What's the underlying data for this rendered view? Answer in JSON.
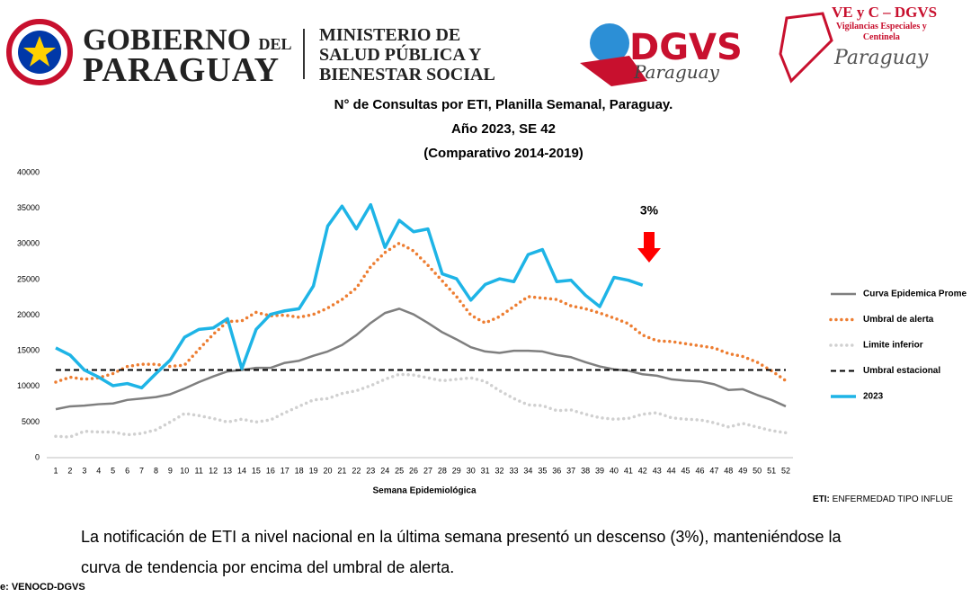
{
  "header": {
    "gov_line1": "GOBIERNO",
    "gov_del": "DEL",
    "gov_line2": "PARAGUAY",
    "ministry": [
      "MINISTERIO DE",
      "SALUD PÚBLICA Y",
      "BIENESTAR SOCIAL"
    ],
    "dgvs": "DGVS",
    "dgvs_sub": "Paraguay",
    "vec_title": "VE y C – DGVS",
    "vec_sub": [
      "Vigilancias Especiales y",
      "Centinela"
    ],
    "vec_country": "Paraguay"
  },
  "chart_data": {
    "type": "line",
    "title": [
      "N° de Consultas por ETI, Planilla Semanal, Paraguay.",
      "Año 2023, SE 42",
      "(Comparativo 2014-2019)"
    ],
    "x_label": "Semana Epidemiológica",
    "annotation": "3%",
    "arrow_color": "#ff0000",
    "categories": [
      1,
      2,
      3,
      4,
      5,
      6,
      7,
      8,
      9,
      10,
      11,
      12,
      13,
      14,
      15,
      16,
      17,
      18,
      19,
      20,
      21,
      22,
      23,
      24,
      25,
      26,
      27,
      28,
      29,
      30,
      31,
      32,
      33,
      34,
      35,
      36,
      37,
      38,
      39,
      40,
      41,
      42,
      43,
      44,
      45,
      46,
      47,
      48,
      49,
      50,
      51,
      52
    ],
    "ylim": [
      0,
      40000
    ],
    "yticks": [
      0,
      5000,
      10000,
      15000,
      20000,
      25000,
      30000,
      35000,
      40000
    ],
    "grid": false,
    "legend": "right",
    "series": [
      {
        "name": "Curva Epidemica Prome",
        "color": "#7f7f7f",
        "dash": "solid",
        "width": 2.5,
        "values": [
          6800,
          7200,
          7300,
          7500,
          7600,
          8100,
          8300,
          8500,
          8900,
          9700,
          10600,
          11400,
          12100,
          12300,
          12600,
          12600,
          13300,
          13600,
          14300,
          14900,
          15800,
          17200,
          18900,
          20300,
          20900,
          20100,
          18900,
          17600,
          16600,
          15500,
          14900,
          14700,
          15000,
          15000,
          14900,
          14400,
          14100,
          13400,
          12800,
          12400,
          12200,
          11700,
          11500,
          11000,
          10800,
          10700,
          10300,
          9500,
          9600,
          8800,
          8100,
          7200
        ]
      },
      {
        "name": "Umbral de alerta",
        "color": "#ed7d31",
        "dash": "dotted",
        "width": 3.5,
        "values": [
          10600,
          11300,
          11000,
          11200,
          11800,
          12800,
          13100,
          13100,
          12800,
          13000,
          15200,
          17300,
          19100,
          19200,
          20400,
          19900,
          20000,
          19700,
          20100,
          21000,
          22200,
          23800,
          26800,
          28800,
          30100,
          29000,
          27000,
          24800,
          22600,
          20000,
          18900,
          19800,
          21200,
          22600,
          22400,
          22200,
          21300,
          20900,
          20300,
          19600,
          18800,
          17200,
          16400,
          16300,
          16000,
          15700,
          15400,
          14600,
          14200,
          13400,
          12200,
          10800
        ]
      },
      {
        "name": "Limite inferior",
        "color": "#d0d0d0",
        "dash": "dotted",
        "width": 3.5,
        "values": [
          3000,
          2900,
          3700,
          3600,
          3600,
          3200,
          3400,
          3900,
          5000,
          6200,
          5900,
          5500,
          5000,
          5400,
          5000,
          5300,
          6300,
          7200,
          8100,
          8300,
          9000,
          9400,
          10100,
          11000,
          11700,
          11600,
          11200,
          10800,
          11000,
          11200,
          10700,
          9400,
          8300,
          7400,
          7300,
          6600,
          6700,
          6100,
          5600,
          5400,
          5500,
          6100,
          6300,
          5600,
          5400,
          5300,
          4900,
          4300,
          4800,
          4300,
          3800,
          3500
        ]
      },
      {
        "name": "Umbral estacional",
        "color": "#000000",
        "dash": "dashed",
        "width": 2,
        "values": [
          12300,
          12300,
          12300,
          12300,
          12300,
          12300,
          12300,
          12300,
          12300,
          12300,
          12300,
          12300,
          12300,
          12300,
          12300,
          12300,
          12300,
          12300,
          12300,
          12300,
          12300,
          12300,
          12300,
          12300,
          12300,
          12300,
          12300,
          12300,
          12300,
          12300,
          12300,
          12300,
          12300,
          12300,
          12300,
          12300,
          12300,
          12300,
          12300,
          12300,
          12300,
          12300,
          12300,
          12300,
          12300,
          12300,
          12300,
          12300,
          12300,
          12300,
          12300,
          12300
        ]
      },
      {
        "name": "2023",
        "color": "#1eb4e6",
        "dash": "solid",
        "width": 3.5,
        "values": [
          15400,
          14400,
          12300,
          11300,
          10100,
          10400,
          9800,
          11800,
          13700,
          16900,
          18000,
          18200,
          19500,
          12500,
          18000,
          20100,
          20600,
          20900,
          24100,
          32500,
          35300,
          32100,
          35500,
          29500,
          33300,
          31700,
          32100,
          25800,
          25100,
          22100,
          24300,
          25100,
          24700,
          28500,
          29200,
          24700,
          24900,
          22800,
          21200,
          25300,
          24900,
          24200,
          null,
          null,
          null,
          null,
          null,
          null,
          null,
          null,
          null,
          null
        ]
      }
    ]
  },
  "footnote_bold": "ETI:",
  "footnote": "ENFERMEDAD TIPO INFLUE",
  "body": [
    "La notificación de ETI a nivel nacional en la última semana presentó un descenso (3%), manteniéndose la",
    "curva de tendencia  por encima del umbral de alerta."
  ],
  "source": "e: VENOCD-DGVS"
}
